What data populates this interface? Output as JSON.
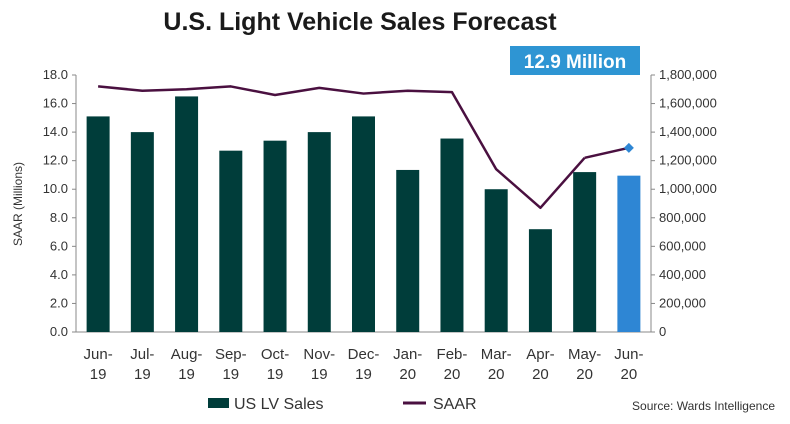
{
  "chart_data": {
    "type": "bar",
    "title": "U.S. Light Vehicle Sales Forecast",
    "callout": "12.9 Million",
    "source": "Source: Wards Intelligence",
    "ylabel": "SAAR (Millions)",
    "ylim": [
      0,
      18
    ],
    "yticks": [
      "0.0",
      "2.0",
      "4.0",
      "6.0",
      "8.0",
      "10.0",
      "12.0",
      "14.0",
      "16.0",
      "18.0"
    ],
    "y2lim": [
      0,
      1800000
    ],
    "y2ticks": [
      "0",
      "200,000",
      "400,000",
      "600,000",
      "800,000",
      "1,000,000",
      "1,200,000",
      "1,400,000",
      "1,600,000",
      "1,800,000"
    ],
    "categories": [
      [
        "Jun-",
        "19"
      ],
      [
        "Jul-",
        "19"
      ],
      [
        "Aug-",
        "19"
      ],
      [
        "Sep-",
        "19"
      ],
      [
        "Oct-",
        "19"
      ],
      [
        "Nov-",
        "19"
      ],
      [
        "Dec-",
        "19"
      ],
      [
        "Jan-",
        "20"
      ],
      [
        "Feb-",
        "20"
      ],
      [
        "Mar-",
        "20"
      ],
      [
        "Apr-",
        "20"
      ],
      [
        "May-",
        "20"
      ],
      [
        "Jun-",
        "20"
      ]
    ],
    "legend_placement": "bottom",
    "series": [
      {
        "name": "US LV Sales",
        "type": "bar",
        "axis": "right",
        "color": "#003d3a",
        "forecast_color": "#2e86d4",
        "values": [
          1510000,
          1400000,
          1650000,
          1270000,
          1340000,
          1400000,
          1510000,
          1135000,
          1355000,
          1000000,
          720000,
          1120000,
          1095000
        ]
      },
      {
        "name": "SAAR",
        "type": "line",
        "axis": "left",
        "color": "#4a1040",
        "forecast_marker_color": "#2e86d4",
        "values": [
          17.2,
          16.9,
          17.0,
          17.2,
          16.6,
          17.1,
          16.7,
          16.9,
          16.8,
          11.4,
          8.7,
          12.2,
          12.9
        ]
      }
    ]
  }
}
